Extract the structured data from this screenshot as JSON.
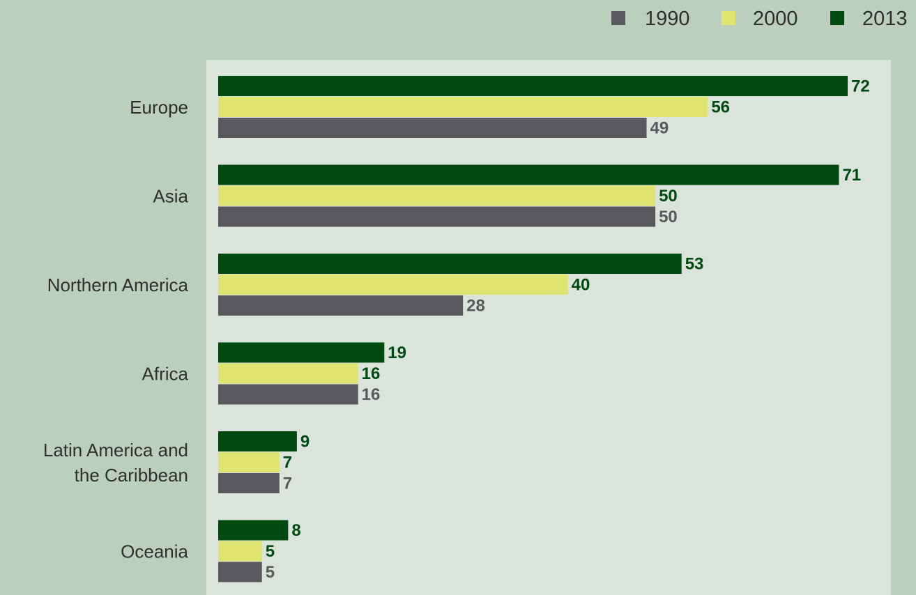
{
  "chart_data": {
    "type": "bar",
    "orientation": "horizontal",
    "categories": [
      [
        "Europe"
      ],
      [
        "Asia"
      ],
      [
        "Northern America"
      ],
      [
        "Africa"
      ],
      [
        "Latin America and",
        "the Caribbean"
      ],
      [
        "Oceania"
      ]
    ],
    "series": [
      {
        "name": "2013",
        "color": "#004a12",
        "label_color": "#004a12",
        "values": [
          72,
          71,
          53,
          19,
          9,
          8
        ]
      },
      {
        "name": "2000",
        "color": "#dfe370",
        "label_color": "#004a12",
        "values": [
          56,
          50,
          40,
          16,
          7,
          5
        ]
      },
      {
        "name": "1990",
        "color": "#59585c",
        "label_color": "#59585c",
        "values": [
          49,
          50,
          28,
          16,
          7,
          5
        ]
      }
    ],
    "legend": {
      "placement": "top-right",
      "order": [
        "1990",
        "2000",
        "2013"
      ]
    },
    "title": "",
    "xlabel": "",
    "ylabel": "",
    "xlim": [
      0,
      75
    ],
    "grid": false,
    "colors": {
      "page_background": "#bccfbd",
      "plot_background": "#dae4da",
      "category_text": "#2f2f2f"
    }
  }
}
